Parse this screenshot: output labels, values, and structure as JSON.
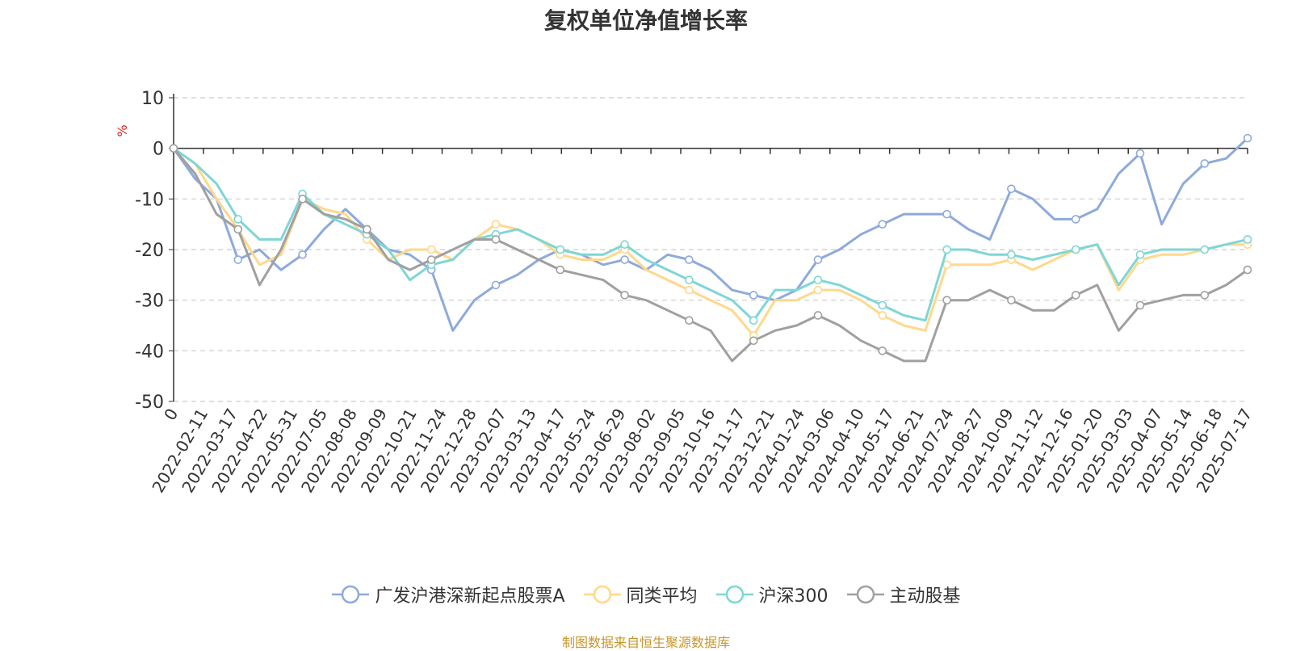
{
  "title": "复权单位净值增长率",
  "source": "制图数据来自恒生聚源数据库",
  "colors": {
    "source": "#c8962c",
    "ylabel": "#e02020",
    "axis": "#333333",
    "grid": "#cccccc"
  },
  "chart_data": {
    "type": "line",
    "title": "复权单位净值增长率",
    "ylabel": "%",
    "ylim": [
      -50,
      10
    ],
    "yticks": [
      10,
      0,
      -10,
      -20,
      -30,
      -40,
      -50
    ],
    "grid": true,
    "legend_position": "bottom",
    "x_ticks": [
      "0",
      "2022-02-11",
      "2022-03-17",
      "2022-04-22",
      "2022-05-31",
      "2022-07-05",
      "2022-08-08",
      "2022-09-09",
      "2022-10-21",
      "2022-11-24",
      "2022-12-28",
      "2023-02-07",
      "2023-03-13",
      "2023-04-17",
      "2023-05-24",
      "2023-06-29",
      "2023-08-02",
      "2023-09-05",
      "2023-10-16",
      "2023-11-17",
      "2023-12-21",
      "2024-01-24",
      "2024-03-06",
      "2024-04-10",
      "2024-05-17",
      "2024-06-21",
      "2024-07-24",
      "2024-08-27",
      "2024-10-09",
      "2024-11-12",
      "2024-12-16",
      "2025-01-20",
      "2025-03-03",
      "2025-04-07",
      "2025-05-14",
      "2025-06-18",
      "2025-07-17"
    ],
    "series": [
      {
        "name": "广发沪港深新起点股票A",
        "color": "#8eaadb",
        "values": [
          0,
          -6,
          -10,
          -22,
          -20,
          -24,
          -21,
          -16,
          -12,
          -16,
          -20,
          -21,
          -24,
          -36,
          -30,
          -27,
          -25,
          -22,
          -20,
          -21,
          -23,
          -22,
          -24,
          -21,
          -22,
          -24,
          -28,
          -29,
          -30,
          -28,
          -22,
          -20,
          -17,
          -15,
          -13,
          -13,
          -13,
          -16,
          -18,
          -8,
          -10,
          -14,
          -14,
          -12,
          -5,
          -1,
          -15,
          -7,
          -3,
          -2,
          2
        ]
      },
      {
        "name": "同类平均",
        "color": "#ffd88a",
        "values": [
          0,
          -3,
          -10,
          -16,
          -23,
          -21,
          -10,
          -12,
          -13,
          -18,
          -22,
          -20,
          -20,
          -22,
          -18,
          -15,
          -16,
          -18,
          -21,
          -22,
          -22,
          -20,
          -24,
          -26,
          -28,
          -30,
          -32,
          -37,
          -30,
          -30,
          -28,
          -28,
          -30,
          -33,
          -35,
          -36,
          -23,
          -23,
          -23,
          -22,
          -24,
          -22,
          -20,
          -19,
          -28,
          -22,
          -21,
          -21,
          -20,
          -19,
          -19
        ]
      },
      {
        "name": "沪深300",
        "color": "#7fd6d6",
        "values": [
          0,
          -3,
          -7,
          -14,
          -18,
          -18,
          -9,
          -13,
          -15,
          -17,
          -20,
          -26,
          -23,
          -22,
          -18,
          -17,
          -16,
          -18,
          -20,
          -21,
          -21,
          -19,
          -22,
          -24,
          -26,
          -28,
          -30,
          -34,
          -28,
          -28,
          -26,
          -27,
          -29,
          -31,
          -33,
          -34,
          -20,
          -20,
          -21,
          -21,
          -22,
          -21,
          -20,
          -19,
          -27,
          -21,
          -20,
          -20,
          -20,
          -19,
          -18
        ]
      },
      {
        "name": "主动股基",
        "color": "#a0a0a0",
        "values": [
          0,
          -5,
          -13,
          -16,
          -27,
          -20,
          -10,
          -13,
          -14,
          -16,
          -22,
          -24,
          -22,
          -20,
          -18,
          -18,
          -20,
          -22,
          -24,
          -25,
          -26,
          -29,
          -30,
          -32,
          -34,
          -36,
          -42,
          -38,
          -36,
          -35,
          -33,
          -35,
          -38,
          -40,
          -42,
          -42,
          -30,
          -30,
          -28,
          -30,
          -32,
          -32,
          -29,
          -27,
          -36,
          -31,
          -30,
          -29,
          -29,
          -27,
          -24
        ]
      }
    ]
  }
}
